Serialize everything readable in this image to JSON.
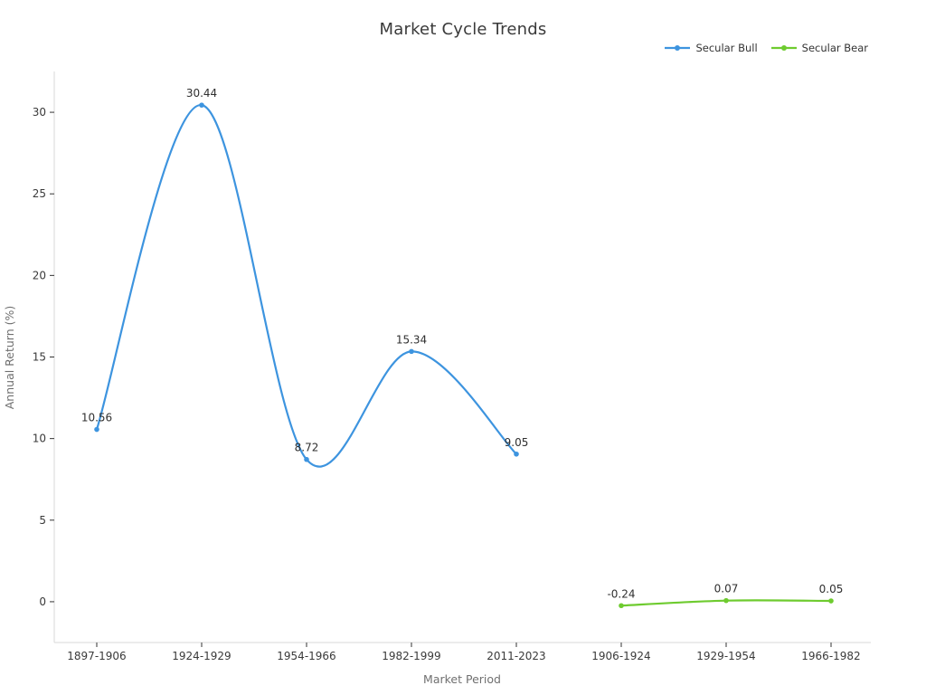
{
  "chart_data": {
    "type": "line",
    "title": "Market Cycle Trends",
    "xlabel": "Market Period",
    "ylabel": "Annual Return (%)",
    "categories": [
      "1897-1906",
      "1924-1929",
      "1954-1966",
      "1982-1999",
      "2011-2023",
      "1906-1924",
      "1929-1954",
      "1966-1982"
    ],
    "series": [
      {
        "name": "Secular Bull",
        "color": "#3d94df",
        "values": [
          10.56,
          30.44,
          8.72,
          15.34,
          9.05,
          null,
          null,
          null
        ]
      },
      {
        "name": "Secular Bear",
        "color": "#6ecb2f",
        "values": [
          null,
          null,
          null,
          null,
          null,
          -0.24,
          0.07,
          0.05
        ]
      }
    ],
    "point_labels": [
      "10.56",
      "30.44",
      "8.72",
      "15.34",
      "9.05",
      "-0.24",
      "0.07",
      "0.05"
    ],
    "ylim": [
      -2.5,
      32.5
    ],
    "yticks": [
      0,
      5,
      10,
      15,
      20,
      25,
      30
    ],
    "grid": false,
    "smooth": true,
    "legend_position": "top-right",
    "colors": {
      "background": "#ffffff",
      "spine": "#d9d9d9",
      "tick_text": "#3a3a3a",
      "axis_title_text": "#707070",
      "title_text": "#3a3a3a"
    }
  }
}
